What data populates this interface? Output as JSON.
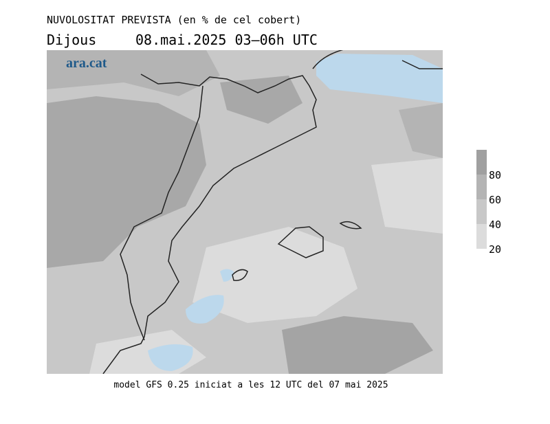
{
  "header": {
    "title": "NUVOLOSITAT PREVISTA (en % de cel cobert)",
    "day": "Dijous",
    "period": "08.mai.2025 03–06h UTC"
  },
  "logo": "ara.cat",
  "legend": {
    "ticks": [
      20,
      40,
      60,
      80
    ],
    "colors": [
      "#dcdcdc",
      "#c8c8c8",
      "#b4b4b4",
      "#a0a0a0"
    ]
  },
  "footer": "model GFS 0.25 iniciat a les 12 UTC del 07 mai 2025"
}
